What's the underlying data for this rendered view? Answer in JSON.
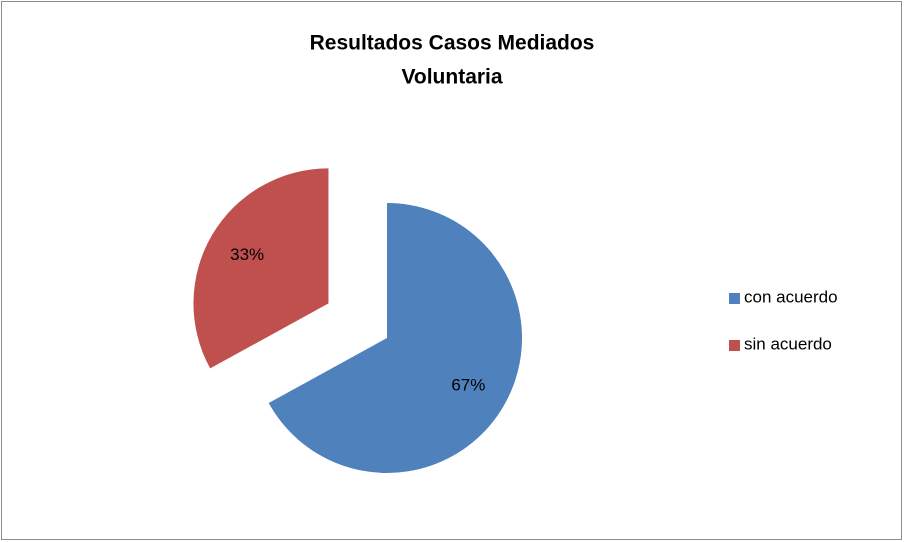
{
  "chart_data": {
    "type": "pie",
    "title": [
      "Resultados Casos Mediados",
      "Voluntaria"
    ],
    "categories": [
      "con acuerdo",
      "sin acuerdo"
    ],
    "values": [
      67,
      33
    ],
    "value_labels": [
      "67%",
      "33%"
    ],
    "colors": [
      "#4f81bd",
      "#c0504d"
    ],
    "explode": [
      false,
      true
    ],
    "legend": "right"
  }
}
